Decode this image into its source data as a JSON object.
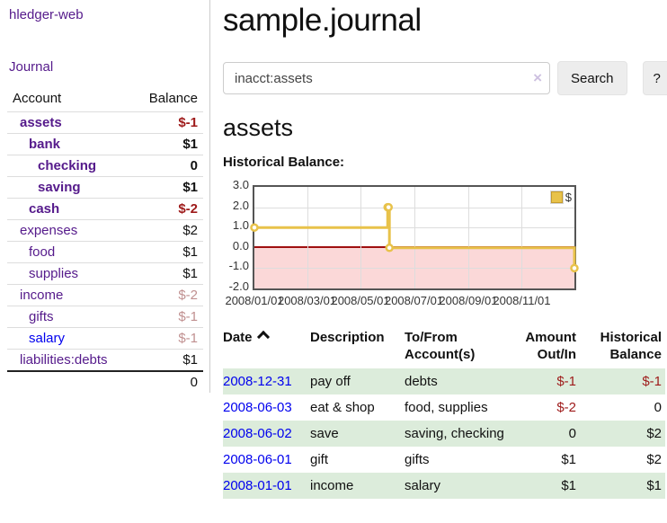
{
  "sidebar": {
    "brand": "hledger-web",
    "journal_link": "Journal",
    "accounts_table": {
      "account_header": "Account",
      "balance_header": "Balance",
      "rows": [
        {
          "account": "assets",
          "balance": "$-1",
          "depth": 1,
          "bold": true,
          "balance_style": "neg-strong",
          "link_style": "visited"
        },
        {
          "account": "bank",
          "balance": "$1",
          "depth": 2,
          "bold": true,
          "balance_style": "plain",
          "link_style": "visited"
        },
        {
          "account": "checking",
          "balance": "0",
          "depth": 3,
          "bold": true,
          "balance_style": "plain",
          "link_style": "visited"
        },
        {
          "account": "saving",
          "balance": "$1",
          "depth": 3,
          "bold": true,
          "balance_style": "plain",
          "link_style": "visited"
        },
        {
          "account": "cash",
          "balance": "$-2",
          "depth": 2,
          "bold": true,
          "balance_style": "neg-strong",
          "link_style": "visited"
        },
        {
          "account": "expenses",
          "balance": "$2",
          "depth": 1,
          "bold": false,
          "balance_style": "plain",
          "link_style": "visited"
        },
        {
          "account": "food",
          "balance": "$1",
          "depth": 2,
          "bold": false,
          "balance_style": "plain",
          "link_style": "visited"
        },
        {
          "account": "supplies",
          "balance": "$1",
          "depth": 2,
          "bold": false,
          "balance_style": "plain",
          "link_style": "visited"
        },
        {
          "account": "income",
          "balance": "$-2",
          "depth": 1,
          "bold": false,
          "balance_style": "neg-muted",
          "link_style": "visited"
        },
        {
          "account": "gifts",
          "balance": "$-1",
          "depth": 2,
          "bold": false,
          "balance_style": "neg-muted",
          "link_style": "visited"
        },
        {
          "account": "salary",
          "balance": "$-1",
          "depth": 2,
          "bold": false,
          "balance_style": "neg-muted",
          "link_style": "unvisited"
        },
        {
          "account": "liabilities:debts",
          "balance": "$1",
          "depth": 1,
          "bold": false,
          "balance_style": "plain",
          "link_style": "visited"
        }
      ],
      "total": "0"
    }
  },
  "header": {
    "title": "sample.journal"
  },
  "search": {
    "value": "inacct:assets",
    "clear_icon": "×",
    "search_button": "Search",
    "help_button": "?"
  },
  "account_page": {
    "heading": "assets",
    "chart_title": "Historical Balance:"
  },
  "chart_data": {
    "type": "line",
    "title": "Historical Balance",
    "step": true,
    "legend": {
      "label": "$",
      "position": "top-right"
    },
    "xlim_days": [
      0,
      365
    ],
    "ylim": [
      -2,
      3
    ],
    "grid": true,
    "yticks": [
      {
        "label": "3.0",
        "value": 3
      },
      {
        "label": "2.0",
        "value": 2
      },
      {
        "label": "1.0",
        "value": 1
      },
      {
        "label": "0.0",
        "value": 0
      },
      {
        "label": "-1.0",
        "value": -1
      },
      {
        "label": "-2.0",
        "value": -2
      }
    ],
    "xticks": [
      {
        "label": "2008/01/01",
        "t": 0
      },
      {
        "label": "2008/03/01",
        "t": 60
      },
      {
        "label": "2008/05/01",
        "t": 121
      },
      {
        "label": "2008/07/01",
        "t": 182
      },
      {
        "label": "2008/09/01",
        "t": 244
      },
      {
        "label": "2008/11/01",
        "t": 305
      }
    ],
    "series": [
      {
        "name": "$",
        "points": [
          {
            "date": "2008-01-01",
            "t": 0,
            "value": 1
          },
          {
            "date": "2008-06-01",
            "t": 152,
            "value": 2
          },
          {
            "date": "2008-06-02",
            "t": 153,
            "value": 2
          },
          {
            "date": "2008-06-03",
            "t": 154,
            "value": 0
          },
          {
            "date": "2008-12-31",
            "t": 365,
            "value": -1
          }
        ]
      }
    ],
    "colors": {
      "line": "#e8c24a",
      "negative_zone": "#fbd8d8",
      "zero_line": "#a01010",
      "grid": "#dddddd",
      "frame": "#555555"
    }
  },
  "register": {
    "headers": {
      "date": "Date",
      "sort_icon": "chevron-up",
      "description": "Description",
      "account_line1": "To/From",
      "account_line2": "Account(s)",
      "amount_line1": "Amount",
      "amount_line2": "Out/In",
      "balance_line1": "Historical",
      "balance_line2": "Balance"
    },
    "rows": [
      {
        "date": "2008-12-31",
        "description": "pay off",
        "account": "debts",
        "amount": "$-1",
        "amount_negative": true,
        "balance": "$-1",
        "balance_negative": true
      },
      {
        "date": "2008-06-03",
        "description": "eat & shop",
        "account": "food, supplies",
        "amount": "$-2",
        "amount_negative": true,
        "balance": "0",
        "balance_negative": false
      },
      {
        "date": "2008-06-02",
        "description": "save",
        "account": "saving, checking",
        "amount": "0",
        "amount_negative": false,
        "balance": "$2",
        "balance_negative": false
      },
      {
        "date": "2008-06-01",
        "description": "gift",
        "account": "gifts",
        "amount": "$1",
        "amount_negative": false,
        "balance": "$2",
        "balance_negative": false
      },
      {
        "date": "2008-01-01",
        "description": "income",
        "account": "salary",
        "amount": "$1",
        "amount_negative": false,
        "balance": "$1",
        "balance_negative": false
      }
    ]
  },
  "colors": {
    "link_visited": "#551a8b",
    "link_unvisited": "#0000ee",
    "negative_strong": "#9e1a1a",
    "negative_muted": "#c09090",
    "row_stripe_green": "#dcecdb",
    "accent_gold": "#e8c24a"
  }
}
